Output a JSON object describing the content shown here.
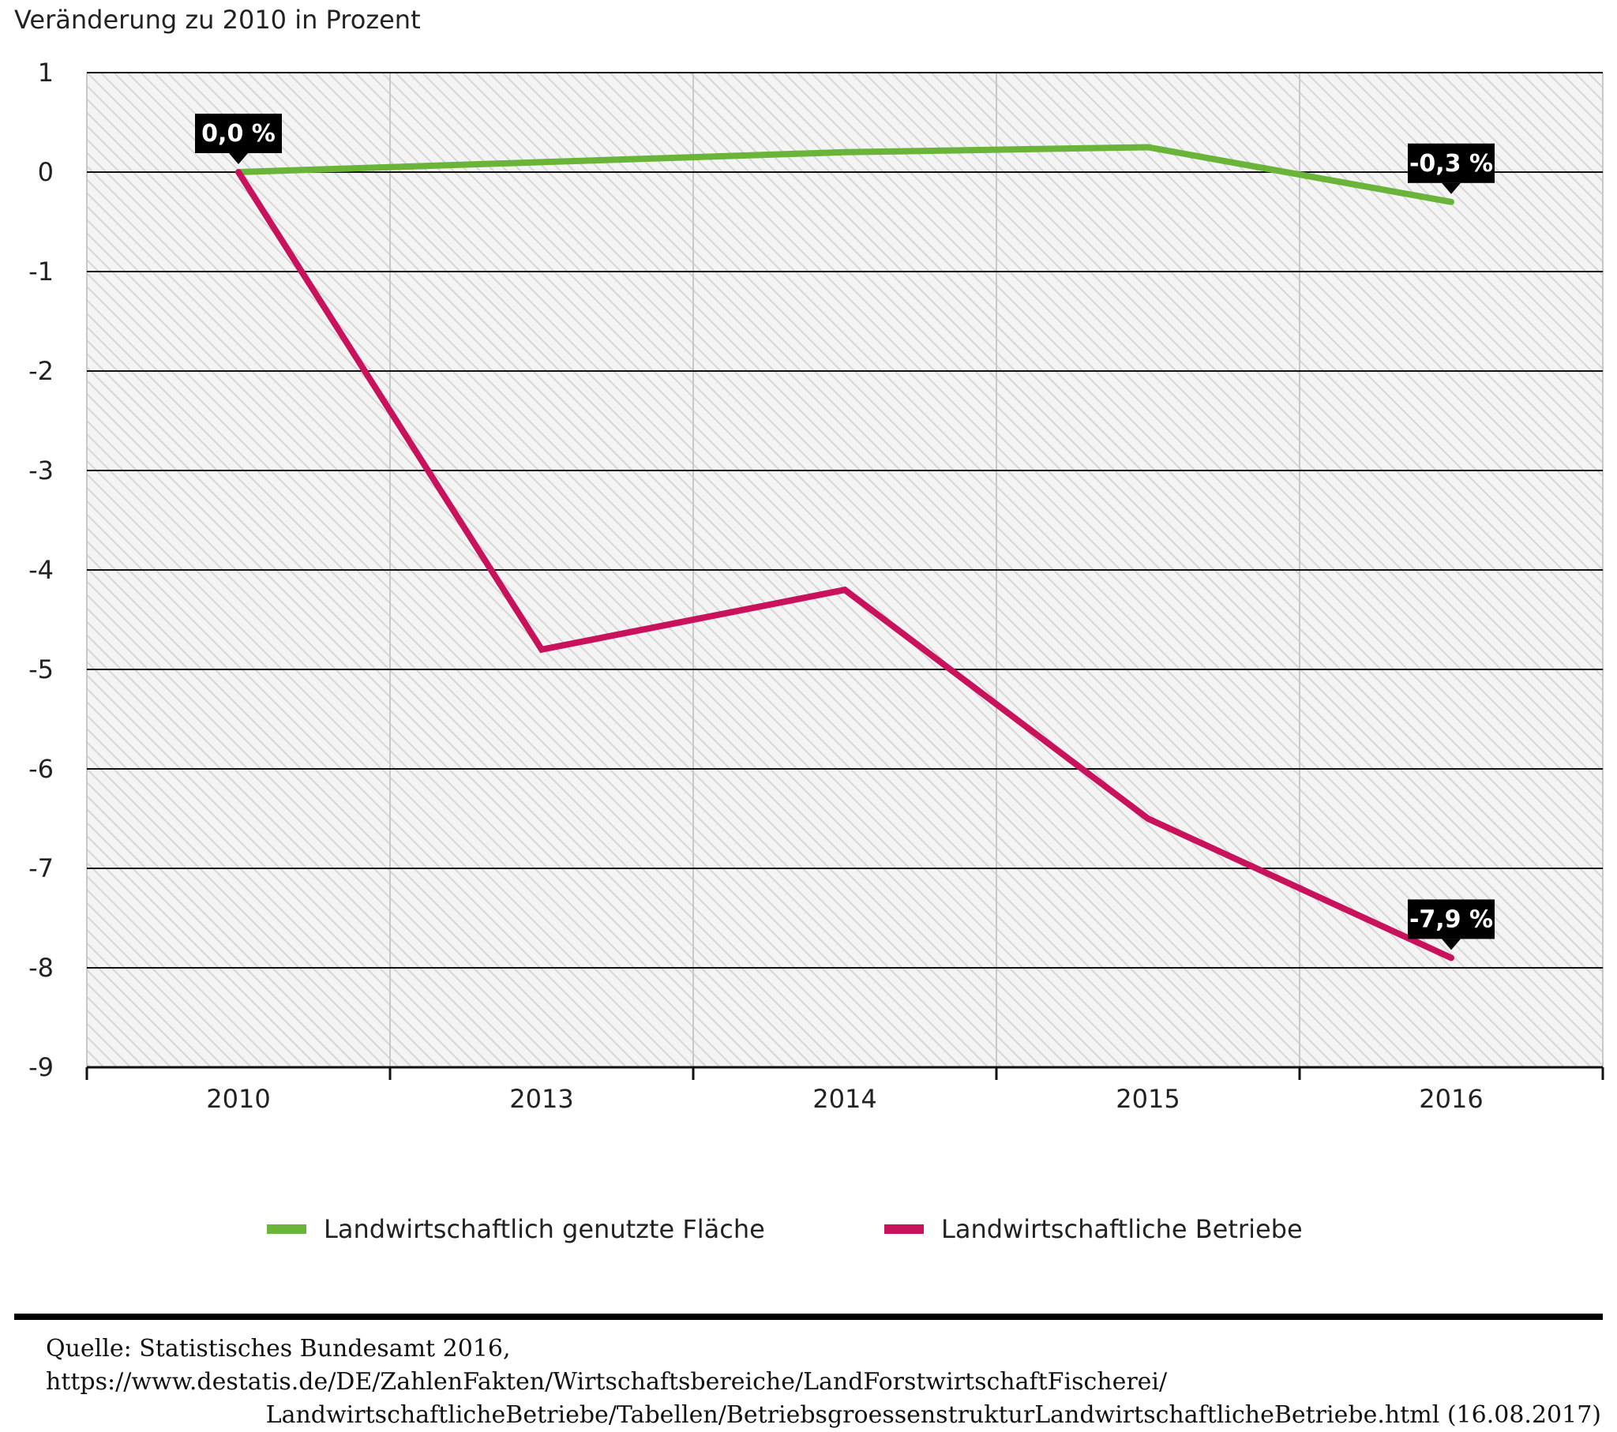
{
  "chart_data": {
    "type": "line",
    "ylabel": "Veränderung zu 2010 in Prozent",
    "xlabel": "",
    "categories": [
      "2010",
      "2013",
      "2014",
      "2015",
      "2016"
    ],
    "series": [
      {
        "name": "Landwirtschaftlich genutzte Fläche",
        "color": "#6ab43a",
        "values": [
          0.0,
          0.1,
          0.2,
          0.25,
          -0.3
        ]
      },
      {
        "name": "Landwirtschaftliche Betriebe",
        "color": "#c8125c",
        "values": [
          0.0,
          -4.8,
          -4.2,
          -6.5,
          -7.9
        ]
      }
    ],
    "ylim": [
      -9,
      1
    ],
    "yticks": [
      "1",
      "0",
      "-1",
      "-2",
      "-3",
      "-4",
      "-5",
      "-6",
      "-7",
      "-8",
      "-9"
    ],
    "annotations": [
      {
        "series": 0,
        "index": 0,
        "text": "0,0 %"
      },
      {
        "series": 0,
        "index": 4,
        "text": "-0,3 %"
      },
      {
        "series": 1,
        "index": 4,
        "text": "-7,9 %"
      }
    ],
    "grid": true,
    "legend_position": "bottom"
  },
  "source": {
    "line1": "Quelle: Statistisches Bundesamt 2016, https://www.destatis.de/DE/ZahlenFakten/Wirtschaftsbereiche/LandForstwirtschaftFischerei/",
    "line2": "LandwirtschaftlicheBetriebe/Tabellen/BetriebsgroessenstrukturLandwirtschaftlicheBetriebe.html (16.08.2017)"
  }
}
